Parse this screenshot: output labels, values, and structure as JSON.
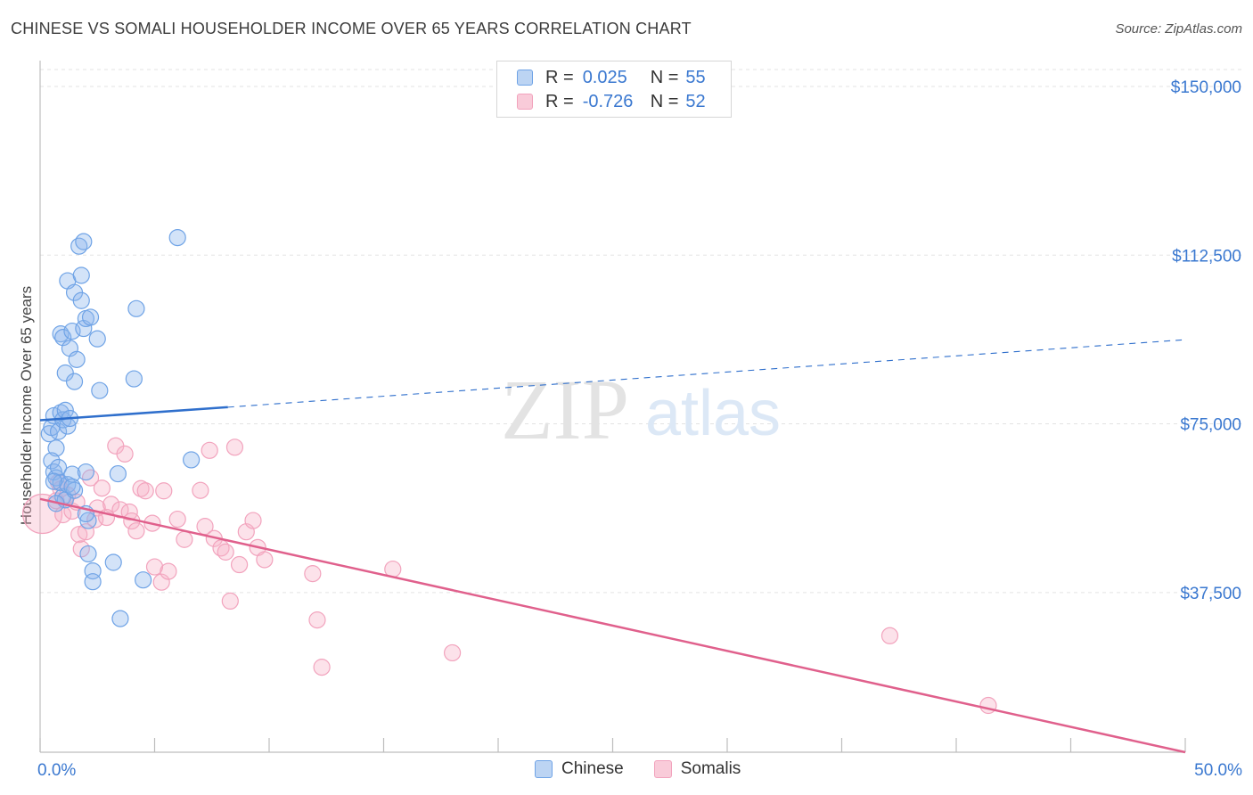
{
  "title": "CHINESE VS SOMALI HOUSEHOLDER INCOME OVER 65 YEARS CORRELATION CHART",
  "source": "Source: ZipAtlas.com",
  "watermark": {
    "zip": "ZIP",
    "atlas": "atlas"
  },
  "legend": {
    "rows": [
      {
        "r_label": "R =",
        "r_value": "0.025",
        "n_label": "N =",
        "n_value": "55"
      },
      {
        "r_label": "R =",
        "r_value": "-0.726",
        "n_label": "N =",
        "n_value": "52"
      }
    ]
  },
  "bottom_legend": [
    "Chinese",
    "Somalis"
  ],
  "chart_data": {
    "type": "scatter",
    "title": "CHINESE VS SOMALI HOUSEHOLDER INCOME OVER 65 YEARS CORRELATION CHART",
    "xlabel": "",
    "ylabel": "Householder Income Over 65 years",
    "xlim": [
      0,
      50
    ],
    "ylim": [
      0,
      155000
    ],
    "x_tick_labels": [
      "0.0%",
      "50.0%"
    ],
    "y_ticks": [
      37500,
      75000,
      112500,
      150000
    ],
    "y_tick_labels": [
      "$37,500",
      "$75,000",
      "$112,500",
      "$150,000"
    ],
    "grid": "horizontal dashed",
    "legend_position": "top-center",
    "colors": {
      "chinese": "#6fa3e6",
      "chinese_line": "#2f6fcc",
      "somalis": "#f2a3bd",
      "somalis_line": "#e0608c",
      "tick_label": "#3a78d0"
    },
    "series": [
      {
        "name": "Chinese",
        "r": 0.025,
        "n": 55,
        "trend": {
          "x0": 0,
          "y0": 75800,
          "x1_solid": 8.2,
          "y1_solid": 78700,
          "x1": 50,
          "y1": 93700
        },
        "points": [
          [
            0.4,
            72800
          ],
          [
            0.5,
            74200
          ],
          [
            0.6,
            76800
          ],
          [
            0.7,
            69600
          ],
          [
            0.8,
            73300
          ],
          [
            0.9,
            77500
          ],
          [
            1.0,
            75900
          ],
          [
            1.1,
            78000
          ],
          [
            1.2,
            74500
          ],
          [
            1.3,
            76200
          ],
          [
            0.5,
            66800
          ],
          [
            0.6,
            64300
          ],
          [
            0.7,
            63000
          ],
          [
            0.8,
            65300
          ],
          [
            0.9,
            61900
          ],
          [
            1.0,
            58800
          ],
          [
            1.1,
            58100
          ],
          [
            1.2,
            61500
          ],
          [
            1.4,
            63800
          ],
          [
            0.6,
            62200
          ],
          [
            0.9,
            95000
          ],
          [
            1.0,
            94200
          ],
          [
            1.1,
            86300
          ],
          [
            1.2,
            106800
          ],
          [
            1.3,
            91800
          ],
          [
            1.4,
            95600
          ],
          [
            1.5,
            104200
          ],
          [
            1.5,
            84400
          ],
          [
            1.6,
            89300
          ],
          [
            1.7,
            114500
          ],
          [
            1.8,
            102400
          ],
          [
            1.8,
            108000
          ],
          [
            1.9,
            96200
          ],
          [
            1.9,
            115500
          ],
          [
            2.0,
            98400
          ],
          [
            2.2,
            98700
          ],
          [
            2.5,
            93900
          ],
          [
            2.6,
            82400
          ],
          [
            4.1,
            85000
          ],
          [
            4.2,
            100600
          ],
          [
            6.0,
            116400
          ],
          [
            2.0,
            64300
          ],
          [
            2.1,
            46100
          ],
          [
            2.3,
            42300
          ],
          [
            2.3,
            39900
          ],
          [
            2.1,
            53500
          ],
          [
            3.2,
            44200
          ],
          [
            3.4,
            63900
          ],
          [
            3.5,
            31700
          ],
          [
            4.5,
            40300
          ],
          [
            6.6,
            67000
          ],
          [
            2.0,
            55000
          ],
          [
            1.5,
            60200
          ],
          [
            0.7,
            57300
          ],
          [
            1.4,
            61000
          ]
        ]
      },
      {
        "name": "Somalis",
        "r": -0.726,
        "n": 52,
        "trend": {
          "x0": 0,
          "y0": 58300,
          "x1": 50,
          "y1": 2000
        },
        "points": [
          [
            0.1,
            55000
          ],
          [
            0.7,
            57900
          ],
          [
            0.8,
            62000
          ],
          [
            0.9,
            60500
          ],
          [
            1.0,
            54800
          ],
          [
            1.2,
            59200
          ],
          [
            1.4,
            55600
          ],
          [
            1.6,
            57600
          ],
          [
            1.7,
            50400
          ],
          [
            1.8,
            47200
          ],
          [
            2.0,
            51000
          ],
          [
            2.2,
            63000
          ],
          [
            2.4,
            53700
          ],
          [
            2.5,
            56300
          ],
          [
            2.7,
            60700
          ],
          [
            2.9,
            54200
          ],
          [
            3.1,
            57100
          ],
          [
            3.3,
            70100
          ],
          [
            3.5,
            55900
          ],
          [
            3.7,
            68300
          ],
          [
            3.9,
            55400
          ],
          [
            4.0,
            53400
          ],
          [
            4.2,
            51200
          ],
          [
            4.4,
            60600
          ],
          [
            4.6,
            60100
          ],
          [
            4.9,
            52900
          ],
          [
            5.0,
            43200
          ],
          [
            5.3,
            39800
          ],
          [
            5.6,
            42200
          ],
          [
            6.0,
            53800
          ],
          [
            6.3,
            49300
          ],
          [
            7.0,
            60200
          ],
          [
            7.2,
            52200
          ],
          [
            7.4,
            69100
          ],
          [
            7.6,
            49500
          ],
          [
            7.9,
            47400
          ],
          [
            8.1,
            46500
          ],
          [
            8.3,
            35600
          ],
          [
            8.5,
            69800
          ],
          [
            8.7,
            43700
          ],
          [
            9.0,
            51000
          ],
          [
            9.3,
            53500
          ],
          [
            9.5,
            47500
          ],
          [
            9.8,
            44800
          ],
          [
            11.9,
            41700
          ],
          [
            12.1,
            31400
          ],
          [
            12.3,
            20900
          ],
          [
            15.4,
            42700
          ],
          [
            18.0,
            24100
          ],
          [
            37.1,
            27900
          ],
          [
            41.4,
            12400
          ],
          [
            5.4,
            60100
          ]
        ]
      }
    ]
  }
}
